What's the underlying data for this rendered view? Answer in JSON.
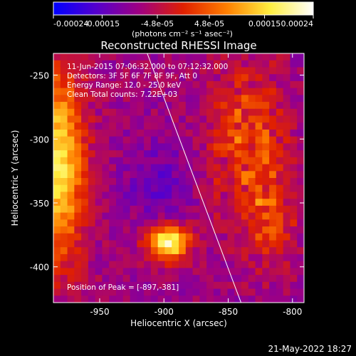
{
  "chart_data": {
    "type": "heatmap",
    "title": "Reconstructed RHESSI Image",
    "xlabel": "Heliocentric X (arcsec)",
    "ylabel": "Heliocentric Y (arcsec)",
    "xlim": [
      -986,
      -791
    ],
    "ylim": [
      -428,
      -233
    ],
    "x_ticks": [
      -950,
      -900,
      -850,
      -800
    ],
    "x_tick_labels": [
      "-950",
      "-900",
      "-850",
      "-800"
    ],
    "y_ticks": [
      -400,
      -350,
      -300,
      -250
    ],
    "y_tick_labels": [
      "-400",
      "-350",
      "-300",
      "-250"
    ],
    "colorbar": {
      "min": -0.00024,
      "max": 0.00024,
      "ticks": [
        -0.00024,
        -0.00015,
        -4.8e-05,
        4.8e-05,
        0.00015,
        0.00024
      ],
      "tick_labels": [
        "-0.00024",
        "-0.00015",
        "-4.8e-05",
        "4.8e-05",
        "0.00015",
        "0.00024"
      ],
      "unit_label": "(photons cm⁻² s⁻¹ asec⁻²)",
      "colormap": [
        "#0000ff",
        "#5500cc",
        "#a00080",
        "#e02000",
        "#ff7f00",
        "#ffee40",
        "#ffffff"
      ]
    },
    "annotations": [
      "11-Jun-2015 07:06:32.000 to 07:12:32.000",
      "Detectors: 3F 5F 6F 7F 8F 9F, Att 0",
      "Energy Range: 12.0 - 25.0 keV",
      "Clean     Total counts: 7.22E+03"
    ],
    "peak_label": "Position of Peak = [-897,-381]",
    "peak": [
      -897,
      -381
    ],
    "limb_line": [
      [
        -913,
        -233
      ],
      [
        -840,
        -428
      ]
    ],
    "grid": false
  },
  "footer": {
    "timestamp": "21-May-2022 18:27"
  }
}
